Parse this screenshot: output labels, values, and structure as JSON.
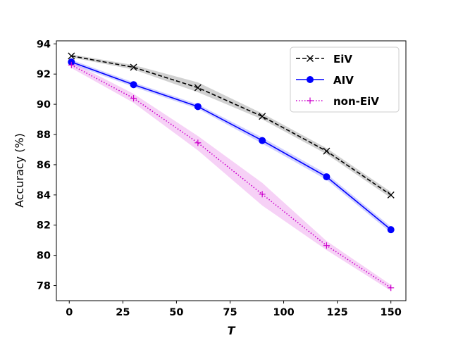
{
  "chart_data": {
    "type": "line",
    "title": "",
    "xlabel": "T",
    "ylabel": "Accuracy (%)",
    "xlim": [
      -6,
      157
    ],
    "ylim": [
      77,
      94.2
    ],
    "xticks": [
      0,
      25,
      50,
      75,
      100,
      125,
      150
    ],
    "yticks": [
      78,
      80,
      82,
      84,
      86,
      88,
      90,
      92,
      94
    ],
    "grid": false,
    "legend_position": "top-right",
    "series": [
      {
        "name": "EiV",
        "color": "#000000",
        "line_style": "dashed",
        "marker": "x",
        "x": [
          1,
          30,
          60,
          90,
          120,
          150
        ],
        "y": [
          93.2,
          92.45,
          91.1,
          89.2,
          86.9,
          84.0
        ],
        "band_lower": [
          93.1,
          92.3,
          90.8,
          89.0,
          86.7,
          83.8
        ],
        "band_upper": [
          93.3,
          92.6,
          91.45,
          89.4,
          87.1,
          84.2
        ]
      },
      {
        "name": "AIV",
        "color": "#0000ff",
        "line_style": "solid",
        "marker": "o",
        "x": [
          1,
          30,
          60,
          90,
          120,
          150
        ],
        "y": [
          92.8,
          91.3,
          89.85,
          87.6,
          85.2,
          81.7
        ],
        "band_lower": [
          92.65,
          91.15,
          89.7,
          87.4,
          85.0,
          81.5
        ],
        "band_upper": [
          92.95,
          91.45,
          90.0,
          87.8,
          85.4,
          81.9
        ]
      },
      {
        "name": "non-EiV",
        "color": "#cc00cc",
        "line_style": "dotted",
        "marker": "+",
        "x": [
          1,
          30,
          60,
          90,
          120,
          150
        ],
        "y": [
          92.6,
          90.4,
          87.45,
          84.05,
          80.65,
          77.85
        ],
        "band_lower": [
          92.4,
          90.1,
          86.95,
          83.3,
          80.35,
          77.65
        ],
        "band_upper": [
          92.8,
          90.7,
          87.9,
          84.8,
          80.95,
          78.05
        ]
      }
    ]
  }
}
